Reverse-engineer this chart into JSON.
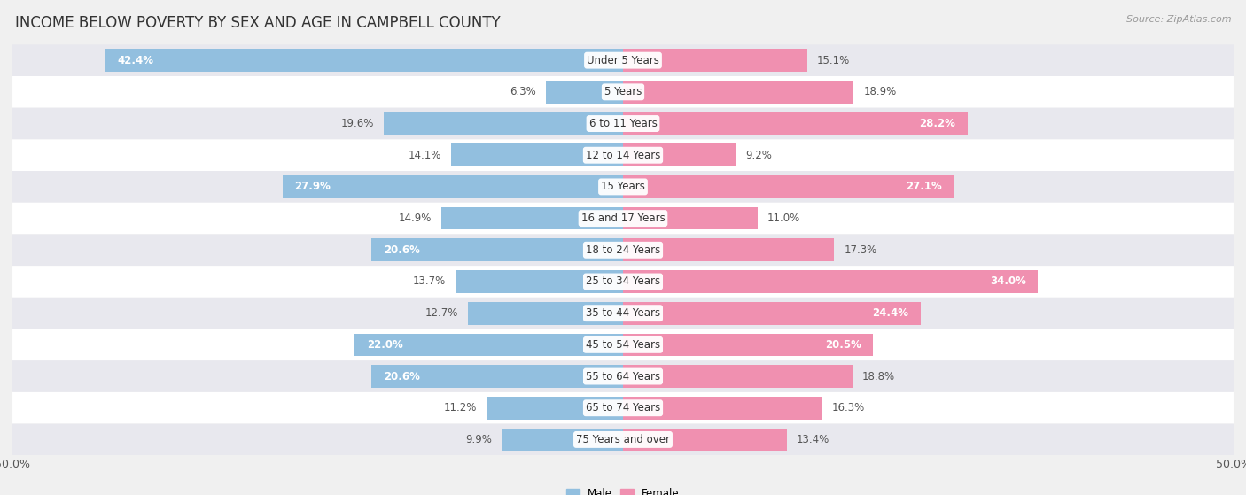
{
  "title": "INCOME BELOW POVERTY BY SEX AND AGE IN CAMPBELL COUNTY",
  "source": "Source: ZipAtlas.com",
  "categories": [
    "Under 5 Years",
    "5 Years",
    "6 to 11 Years",
    "12 to 14 Years",
    "15 Years",
    "16 and 17 Years",
    "18 to 24 Years",
    "25 to 34 Years",
    "35 to 44 Years",
    "45 to 54 Years",
    "55 to 64 Years",
    "65 to 74 Years",
    "75 Years and over"
  ],
  "male_values": [
    42.4,
    6.3,
    19.6,
    14.1,
    27.9,
    14.9,
    20.6,
    13.7,
    12.7,
    22.0,
    20.6,
    11.2,
    9.9
  ],
  "female_values": [
    15.1,
    18.9,
    28.2,
    9.2,
    27.1,
    11.0,
    17.3,
    34.0,
    24.4,
    20.5,
    18.8,
    16.3,
    13.4
  ],
  "male_color": "#92bfdf",
  "female_color": "#f090b0",
  "male_label": "Male",
  "female_label": "Female",
  "axis_limit": 50.0,
  "background_color": "#f0f0f0",
  "row_bg_colors": [
    "#e8e8ee",
    "#ffffff"
  ],
  "bar_height": 0.72,
  "title_fontsize": 12,
  "label_fontsize": 8.5,
  "tick_fontsize": 9,
  "source_fontsize": 8,
  "cat_label_fontsize": 8.5,
  "value_fontsize": 8.5
}
